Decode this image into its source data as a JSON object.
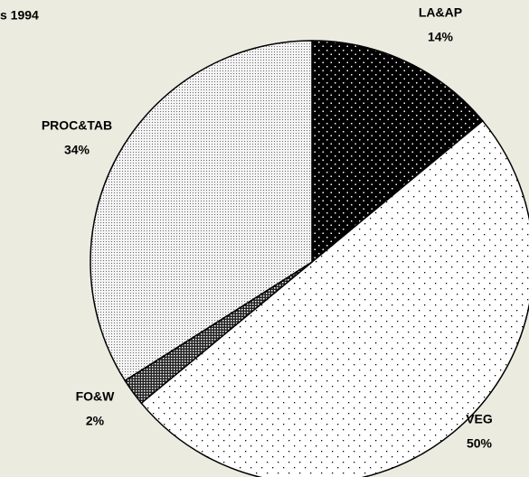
{
  "chart_data": {
    "type": "pie",
    "title": "s 1994",
    "categories": [
      "LA&AP",
      "VEG",
      "FO&W",
      "PROC&TAB"
    ],
    "values": [
      14,
      50,
      2,
      34
    ],
    "value_labels": [
      "14%",
      "50%",
      "2%",
      "34%"
    ]
  }
}
